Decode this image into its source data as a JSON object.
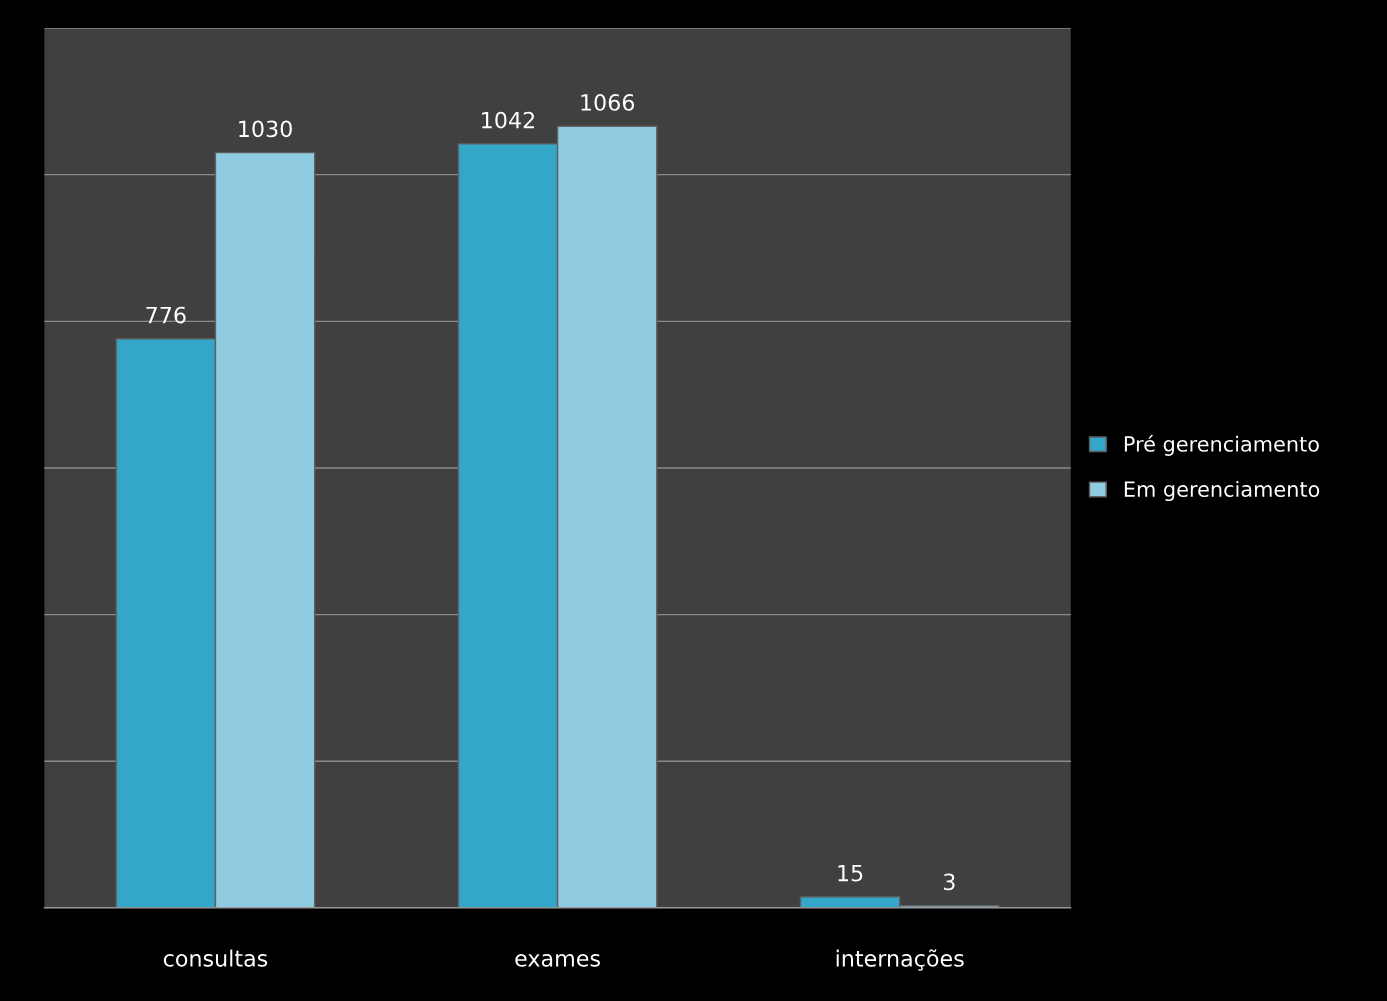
{
  "chart_data": {
    "type": "bar",
    "categories": [
      "consultas",
      "exames",
      "internações"
    ],
    "series": [
      {
        "name": "Pré gerenciamento",
        "color": "#33a6c9",
        "values": [
          776,
          1042,
          15
        ]
      },
      {
        "name": "Em gerenciamento",
        "color": "#8fcce2",
        "values": [
          1030,
          1066,
          3
        ]
      }
    ],
    "ylim": [
      0,
      1200
    ],
    "yticks": [
      {
        "value": 0,
        "label": null
      },
      {
        "value": 200,
        "label": null
      },
      {
        "value": 400,
        "label": null
      },
      {
        "value": 600,
        "label": null
      },
      {
        "value": 800,
        "label": null
      },
      {
        "value": 1000,
        "label": null
      },
      {
        "value": 1200,
        "label": null
      }
    ],
    "grid": "y",
    "tick_labels": "x",
    "data_labels": true,
    "legend": "right"
  }
}
